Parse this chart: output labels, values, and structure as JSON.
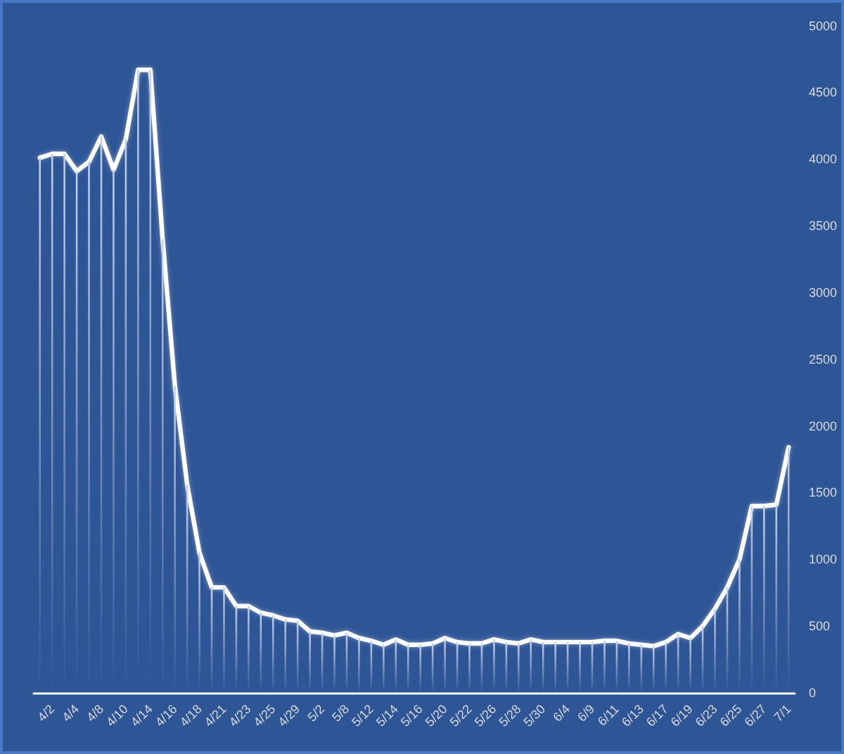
{
  "chart_data": {
    "type": "line",
    "categories": [
      null,
      "4/2",
      null,
      "4/4",
      null,
      "4/8",
      null,
      "4/10",
      null,
      "4/14",
      null,
      "4/16",
      null,
      "4/18",
      null,
      "4/21",
      null,
      "4/23",
      null,
      "4/25",
      null,
      "4/29",
      null,
      "5/2",
      null,
      "5/8",
      null,
      "5/12",
      null,
      "5/14",
      null,
      "5/16",
      null,
      "5/20",
      null,
      "5/22",
      null,
      "5/26",
      null,
      "5/28",
      null,
      "5/30",
      null,
      "6/4",
      null,
      "6/9",
      null,
      "6/11",
      null,
      "6/13",
      null,
      "6/17",
      null,
      "6/19",
      null,
      "6/23",
      null,
      "6/25",
      null,
      "6/27",
      null,
      "7/1"
    ],
    "series": [
      {
        "type": "bar",
        "color": "#c3d0e8",
        "values": [
          4010,
          4040,
          4040,
          3910,
          3980,
          4170,
          3920,
          4150,
          4670,
          4670,
          3400,
          2300,
          1560,
          1050,
          790,
          790,
          650,
          650,
          600,
          580,
          550,
          540,
          460,
          450,
          430,
          450,
          410,
          390,
          360,
          400,
          360,
          360,
          370,
          410,
          380,
          370,
          370,
          400,
          380,
          370,
          400,
          380,
          380,
          380,
          380,
          380,
          390,
          390,
          370,
          360,
          350,
          380,
          440,
          410,
          500,
          630,
          790,
          1000,
          1400,
          1400,
          1410,
          1840
        ]
      },
      {
        "color": "#ffffff",
        "values": [
          4010,
          4040,
          4040,
          3910,
          3980,
          4170,
          3920,
          4150,
          4670,
          4670,
          3400,
          2300,
          1560,
          1050,
          790,
          790,
          650,
          650,
          600,
          580,
          550,
          540,
          460,
          450,
          430,
          450,
          410,
          390,
          360,
          400,
          360,
          360,
          370,
          410,
          380,
          370,
          370,
          400,
          380,
          370,
          400,
          380,
          380,
          380,
          380,
          380,
          390,
          390,
          370,
          360,
          350,
          380,
          440,
          410,
          500,
          630,
          790,
          1000,
          1400,
          1400,
          1410,
          1840
        ]
      }
    ],
    "ylim": [
      0,
      5000
    ],
    "yticks": [
      0,
      500,
      1000,
      1500,
      2000,
      2500,
      3000,
      3500,
      4000,
      4500,
      5000
    ]
  }
}
